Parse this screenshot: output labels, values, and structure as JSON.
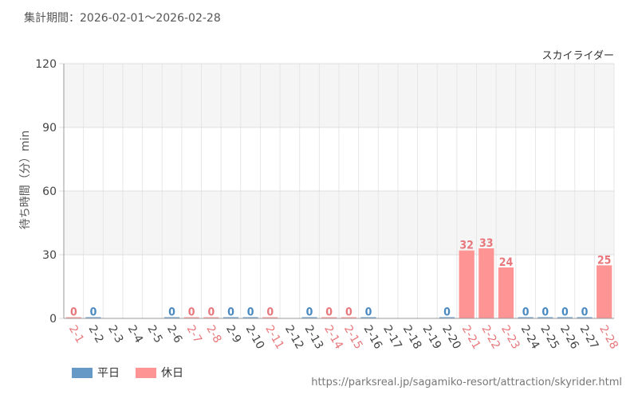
{
  "header": {
    "period": "集計期間：2026-02-01～2026-02-28"
  },
  "chart_data": {
    "type": "bar",
    "title": "スカイライダー",
    "ylabel": "待ち時間（分）min",
    "xlabel": "",
    "ylim": [
      0,
      120
    ],
    "yticks": [
      "0",
      "30",
      "60",
      "90",
      "120"
    ],
    "grid": true,
    "legend_position": "bottom-left",
    "categories": [
      "2-1",
      "2-2",
      "2-3",
      "2-4",
      "2-5",
      "2-6",
      "2-7",
      "2-8",
      "2-9",
      "2-10",
      "2-11",
      "2-12",
      "2-13",
      "2-14",
      "2-15",
      "2-16",
      "2-17",
      "2-18",
      "2-19",
      "2-20",
      "2-21",
      "2-22",
      "2-23",
      "2-24",
      "2-25",
      "2-26",
      "2-27",
      "2-28"
    ],
    "day_type": [
      "holiday",
      "weekday",
      null,
      null,
      null,
      "weekday",
      "holiday",
      "holiday",
      "weekday",
      "weekday",
      "holiday",
      null,
      "weekday",
      "holiday",
      "holiday",
      "weekday",
      null,
      null,
      null,
      "weekday",
      "holiday",
      "holiday",
      "holiday",
      "weekday",
      "weekday",
      "weekday",
      "weekday",
      "holiday"
    ],
    "series": [
      {
        "name": "平日",
        "color": "#6699c6",
        "values": [
          null,
          0,
          null,
          null,
          null,
          0,
          null,
          null,
          0,
          0,
          null,
          null,
          0,
          null,
          null,
          0,
          null,
          null,
          null,
          0,
          null,
          null,
          null,
          0,
          0,
          0,
          0,
          null
        ]
      },
      {
        "name": "休日",
        "color": "#ff9494",
        "values": [
          0,
          null,
          null,
          null,
          null,
          null,
          0,
          0,
          null,
          null,
          0,
          null,
          null,
          0,
          0,
          null,
          null,
          null,
          null,
          null,
          32,
          33,
          24,
          null,
          null,
          null,
          null,
          25
        ]
      }
    ],
    "colors": {
      "weekday_label": "#4a89c0",
      "holiday_label": "#e8777b",
      "normal_label": "#444444"
    }
  },
  "legend": {
    "weekday": "平日",
    "holiday": "休日"
  },
  "footer": {
    "source": "https://parksreal.jp/sagamiko-resort/attraction/skyrider.html"
  }
}
